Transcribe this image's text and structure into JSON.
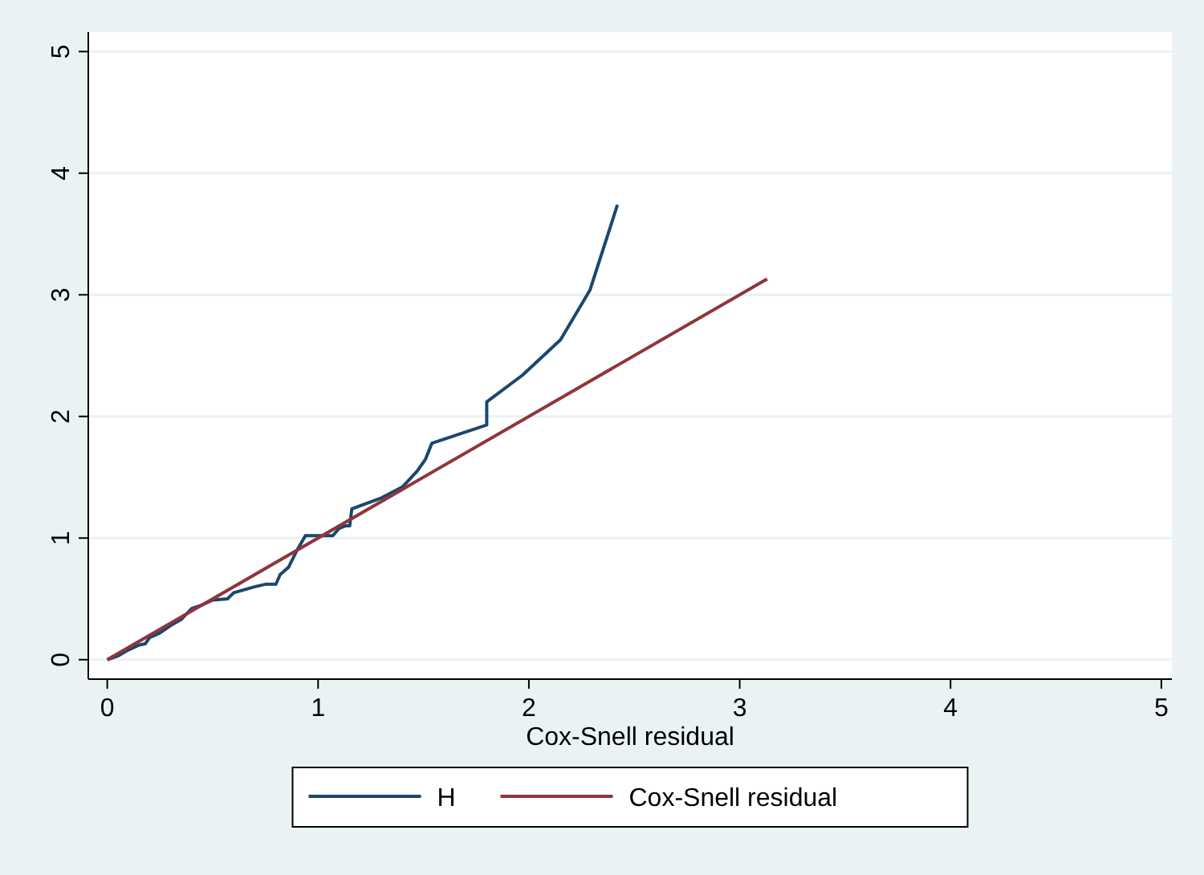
{
  "chart_data": {
    "type": "line",
    "xlabel": "Cox-Snell residual",
    "xlim": [
      -0.09,
      5.05
    ],
    "ylim": [
      -0.16,
      5.16
    ],
    "xticks": [
      0,
      1,
      2,
      3,
      4,
      5
    ],
    "yticks": [
      0,
      1,
      2,
      3,
      4,
      5
    ],
    "grid": "y",
    "legend": "bottom",
    "series": [
      {
        "name": "H",
        "color": "#1a476f",
        "x": [
          0,
          0.05,
          0.1,
          0.15,
          0.18,
          0.2,
          0.25,
          0.3,
          0.35,
          0.4,
          0.45,
          0.5,
          0.57,
          0.6,
          0.7,
          0.75,
          0.8,
          0.82,
          0.86,
          0.9,
          0.94,
          1.07,
          1.1,
          1.13,
          1.15,
          1.16,
          1.3,
          1.4,
          1.47,
          1.51,
          1.54,
          1.8,
          1.8,
          1.97,
          2.15,
          2.29,
          2.42
        ],
        "values": [
          0,
          0.03,
          0.08,
          0.12,
          0.13,
          0.18,
          0.22,
          0.28,
          0.33,
          0.42,
          0.45,
          0.49,
          0.5,
          0.55,
          0.6,
          0.62,
          0.62,
          0.7,
          0.76,
          0.9,
          1.02,
          1.02,
          1.08,
          1.1,
          1.1,
          1.24,
          1.33,
          1.42,
          1.55,
          1.65,
          1.78,
          1.93,
          2.12,
          2.34,
          2.63,
          3.04,
          3.74
        ]
      },
      {
        "name": "Cox-Snell residual",
        "color": "#90353b",
        "x": [
          0,
          3.13
        ],
        "values": [
          0,
          3.13
        ]
      }
    ]
  }
}
